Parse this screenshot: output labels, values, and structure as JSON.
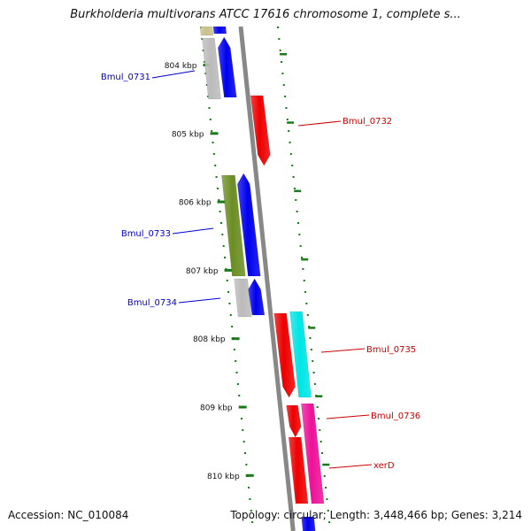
{
  "title": "Burkholderia multivorans ATCC 17616 chromosome 1, complete s...",
  "footer": {
    "accession": "Accession: NC_010084",
    "summary": "Topology: circular; Length: 3,448,466 bp; Genes: 3,214"
  },
  "ruler": [
    {
      "label": "804 kbp"
    },
    {
      "label": "805 kbp"
    },
    {
      "label": "806 kbp"
    },
    {
      "label": "807 kbp"
    },
    {
      "label": "808 kbp"
    },
    {
      "label": "809 kbp"
    },
    {
      "label": "810 kbp"
    }
  ],
  "genes": [
    {
      "name": "Bmul_0731",
      "strand": "minus",
      "color": "#0000cc"
    },
    {
      "name": "Bmul_0732",
      "strand": "plus",
      "color": "#cc0000"
    },
    {
      "name": "Bmul_0733",
      "strand": "minus",
      "color": "#0000cc"
    },
    {
      "name": "Bmul_0734",
      "strand": "minus",
      "color": "#0000cc"
    },
    {
      "name": "Bmul_0735",
      "strand": "plus",
      "color": "#cc0000"
    },
    {
      "name": "Bmul_0736",
      "strand": "plus",
      "color": "#cc0000"
    },
    {
      "name": "xerD",
      "strand": "plus",
      "color": "#cc0000"
    }
  ],
  "colors": {
    "ruler_tick": "#1a7a1a",
    "backbone": "#888888",
    "cds_minus": "#0000ee",
    "cds_plus": "#ee0000",
    "gene_gray": "#bbbbbb",
    "gene_olive": "#6b8e23",
    "gene_tan": "#c8c08a",
    "gene_cyan": "#00e5e5",
    "gene_magenta": "#ee1199"
  }
}
